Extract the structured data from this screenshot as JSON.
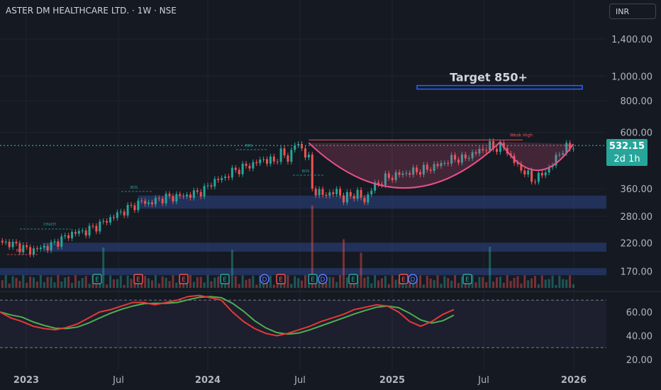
{
  "header": {
    "title": "ASTER DM HEALTHCARE LTD. · 1W · NSE",
    "currency": "INR"
  },
  "colors": {
    "background": "#151922",
    "up": "#26a69a",
    "down": "#ef5350",
    "zone": "#2a3f7a",
    "cup": "#e8508a",
    "target_line": "#2962ff",
    "rsi": "#e53935",
    "rsi_ma": "#4caf50",
    "price_line": "#26a69a"
  },
  "chart_data": {
    "type": "candlestick",
    "scale": "log",
    "ylim": [
      150,
      1700
    ],
    "x_ticks": [
      "2023",
      "Jul",
      "2024",
      "Jul",
      "2025",
      "Jul",
      "2026"
    ],
    "y_ticks": [
      "1,400.00",
      "1,000.00",
      "800.00",
      "600.00",
      "360.00",
      "280.00",
      "220.00",
      "170.00"
    ],
    "last_price": "532.15",
    "countdown": "2d 1h",
    "annotations": {
      "target_label": "Target 850+",
      "target_value": 900,
      "weak_high_label": "Weak High",
      "weak_high_value": 560,
      "bos_labels": [
        "BOS",
        "BOS",
        "BOS",
        "BOS"
      ],
      "choch_label": "CHoCH"
    },
    "zones": [
      {
        "from": 300,
        "to": 338
      },
      {
        "from": 203,
        "to": 220
      },
      {
        "from": 164,
        "to": 175
      }
    ],
    "event_markers": [
      "E",
      "E",
      "E",
      "E",
      "D",
      "E",
      "E",
      "D",
      "E",
      "E",
      "D",
      "E"
    ],
    "rsi_panel": {
      "y_ticks": [
        "60.00",
        "40.00",
        "20.00"
      ],
      "ylim": [
        15,
        80
      ],
      "band": [
        30,
        70
      ]
    }
  }
}
